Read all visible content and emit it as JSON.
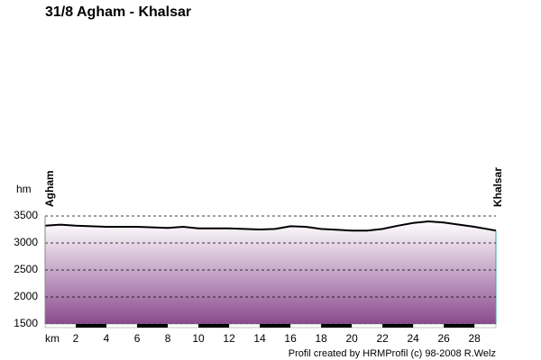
{
  "chart_data": {
    "type": "area",
    "title": "31/8 Agham - Khalsar",
    "y_label": "hm",
    "x_label": "km",
    "start_label": "Agham",
    "end_label": "Khalsar",
    "footer": "Profil created by HRMProfil (c) 98-2008 R.Welz",
    "x": [
      0,
      1,
      2,
      4,
      6,
      8,
      9,
      10,
      12,
      14,
      15,
      16,
      17,
      18,
      20,
      21,
      22,
      23,
      24,
      25,
      26,
      27,
      28,
      29.4
    ],
    "series": [
      {
        "color": "#000000",
        "values": [
          3320,
          3340,
          3320,
          3300,
          3300,
          3280,
          3300,
          3270,
          3270,
          3250,
          3260,
          3310,
          3300,
          3260,
          3230,
          3230,
          3260,
          3320,
          3370,
          3400,
          3380,
          3340,
          3300,
          3230
        ]
      }
    ],
    "fill_top": "#ffffff",
    "fill_bottom": "#8a4a8e",
    "xlim": [
      0,
      29.4
    ],
    "ylim": [
      1500,
      3500
    ],
    "xticks": [
      2,
      4,
      6,
      8,
      10,
      12,
      14,
      16,
      18,
      20,
      22,
      24,
      26,
      28
    ],
    "yticks": [
      1500,
      2000,
      2500,
      3000,
      3500
    ],
    "grid": true
  }
}
